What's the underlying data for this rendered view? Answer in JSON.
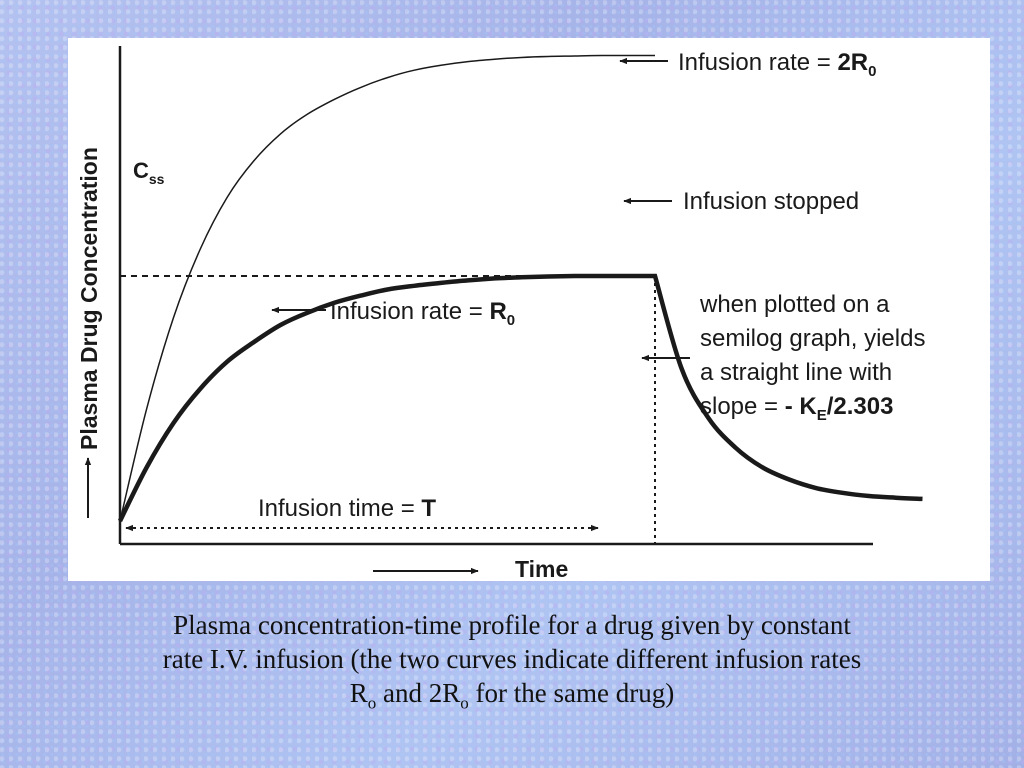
{
  "chart_data": {
    "type": "line",
    "ylabel": "Plasma Drug Concentration",
    "xlabel": "Time",
    "ylim": [
      0,
      1.9
    ],
    "xlim": [
      0,
      1.6
    ],
    "css_label_main": "C",
    "css_label_sub": "ss",
    "series": [
      {
        "name": "Infusion rate = 2R0",
        "x": [
          0,
          0.05,
          0.1,
          0.15,
          0.2,
          0.25,
          0.3,
          0.35,
          0.4,
          0.45,
          0.5,
          0.55,
          0.6,
          0.65,
          0.7,
          0.75,
          0.8,
          0.85,
          0.9,
          1.0
        ],
        "y": [
          0,
          0.46,
          0.83,
          1.11,
          1.32,
          1.47,
          1.58,
          1.66,
          1.72,
          1.77,
          1.81,
          1.84,
          1.86,
          1.875,
          1.885,
          1.892,
          1.896,
          1.898,
          1.9,
          1.9
        ]
      },
      {
        "name": "Infusion rate = R0",
        "x": [
          0,
          0.05,
          0.1,
          0.15,
          0.2,
          0.25,
          0.3,
          0.35,
          0.4,
          0.45,
          0.5,
          0.55,
          0.6,
          0.65,
          0.7,
          0.75,
          0.8,
          0.85,
          0.9,
          0.95,
          1.0,
          1.0,
          1.05,
          1.1,
          1.15,
          1.2,
          1.25,
          1.3,
          1.35,
          1.4,
          1.45,
          1.5
        ],
        "y": [
          0,
          0.22,
          0.4,
          0.54,
          0.65,
          0.73,
          0.8,
          0.85,
          0.89,
          0.92,
          0.945,
          0.96,
          0.972,
          0.982,
          0.99,
          0.995,
          0.998,
          1.0,
          1.0,
          1.0,
          1.0,
          1.0,
          0.62,
          0.42,
          0.3,
          0.22,
          0.17,
          0.135,
          0.115,
          0.102,
          0.095,
          0.09
        ]
      }
    ],
    "reference_lines": {
      "css_level": 1.0,
      "infusion_stop_time": 1.0
    },
    "annotations": {
      "rate_2r0": {
        "text": "Infusion rate = ",
        "bold": "2R",
        "sub": "0"
      },
      "infusion_stopped": {
        "text": "Infusion stopped"
      },
      "rate_r0": {
        "text": "Infusion rate = ",
        "bold": "R",
        "sub": "0"
      },
      "semilog_line1": "when plotted on a",
      "semilog_line2": "semilog graph, yields",
      "semilog_line3": "a straight line with",
      "semilog_line4_text": "slope = ",
      "semilog_line4_bold": "- K",
      "semilog_line4_sub": "E",
      "semilog_line4_bold_end": "/2.303",
      "infusion_time_text": "Infusion time = ",
      "infusion_time_bold": "T"
    }
  },
  "caption": {
    "line1": "Plasma concentration-time profile for a drug given by constant",
    "line2": "rate I.V. infusion (the two curves indicate different infusion rates",
    "line3_a": "R",
    "line3_sub1": "o",
    "line3_b": " and 2R",
    "line3_sub2": "o",
    "line3_c": " for the same drug)"
  }
}
